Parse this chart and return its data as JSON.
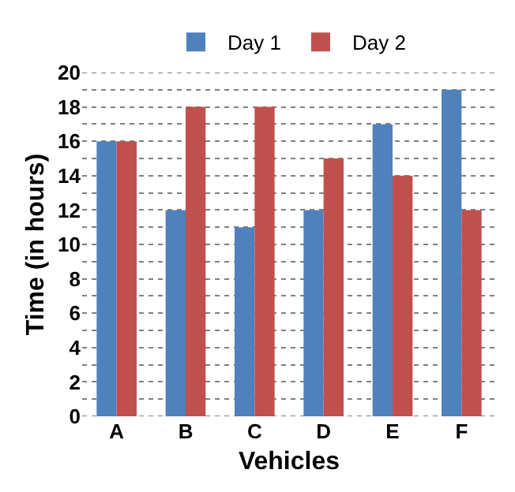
{
  "chart_data": {
    "type": "bar",
    "xlabel": "Vehicles",
    "ylabel": "Time (in hours)",
    "categories": [
      "A",
      "B",
      "C",
      "D",
      "E",
      "F"
    ],
    "series": [
      {
        "name": "Day 1",
        "color": "#4f81bd",
        "values": [
          16,
          12,
          11,
          12,
          17,
          19
        ]
      },
      {
        "name": "Day 2",
        "color": "#c0504d",
        "values": [
          16,
          18,
          18,
          15,
          14,
          12
        ]
      }
    ],
    "ylim": [
      0,
      20
    ],
    "yticks": [
      0,
      {
        "value": 1,
        "label": null
      },
      2,
      {
        "value": 3,
        "label": null
      },
      4,
      {
        "value": 5,
        "label": null
      },
      6,
      {
        "value": 7,
        "label": null
      },
      8,
      {
        "value": 9,
        "label": null
      },
      10,
      {
        "value": 11,
        "label": null
      },
      12,
      {
        "value": 13,
        "label": null
      },
      14,
      {
        "value": 15,
        "label": null
      },
      16,
      {
        "value": 17,
        "label": null
      },
      18,
      {
        "value": 19,
        "label": null
      },
      20
    ],
    "grid": "y",
    "legend": "top"
  }
}
